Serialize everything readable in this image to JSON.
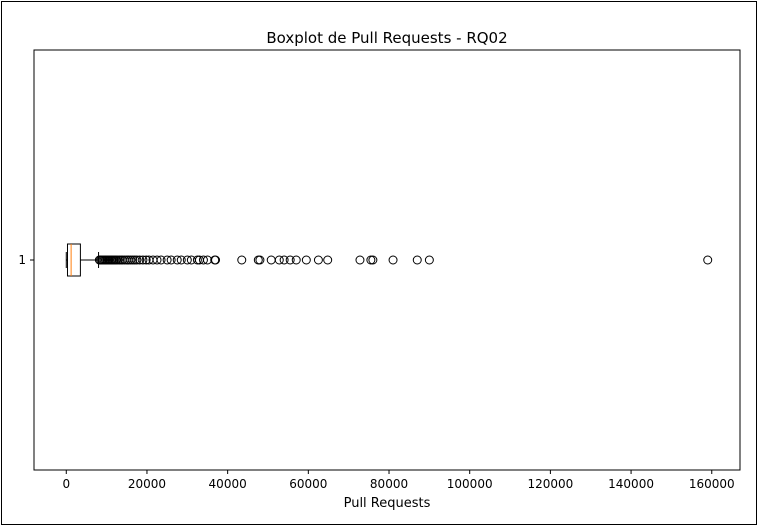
{
  "chart_data": {
    "type": "boxplot",
    "orientation": "horizontal",
    "title": "Boxplot de Pull Requests - RQ02",
    "xlabel": "Pull Requests",
    "ylabel": "",
    "xlim": [
      -8000,
      167000
    ],
    "xticks": [
      0,
      20000,
      40000,
      60000,
      80000,
      100000,
      120000,
      140000,
      160000
    ],
    "xtick_labels": [
      "0",
      "20000",
      "40000",
      "60000",
      "80000",
      "100000",
      "120000",
      "140000",
      "160000"
    ],
    "categories": [
      "1"
    ],
    "box": {
      "whisker_low": 0,
      "q1": 300,
      "median": 1200,
      "q3": 3500,
      "whisker_high": 8000
    },
    "outliers": [
      8200,
      8500,
      8800,
      9100,
      9400,
      9700,
      10000,
      10300,
      10600,
      10900,
      11200,
      11500,
      11800,
      12100,
      12400,
      12800,
      13200,
      13600,
      14000,
      14500,
      15000,
      15500,
      16000,
      16500,
      17000,
      17500,
      18200,
      19000,
      19800,
      20500,
      21500,
      22500,
      23500,
      25000,
      26000,
      27500,
      28500,
      30000,
      31000,
      32500,
      33000,
      34000,
      35000,
      36800,
      37000,
      43500,
      47600,
      48000,
      50800,
      52800,
      54000,
      55500,
      57000,
      59500,
      62500,
      64800,
      72800,
      75500,
      76000,
      81000,
      87000,
      90000,
      159000
    ],
    "colors": {
      "box": "#000000",
      "median": "#ff7f0e",
      "outlier": "#000000"
    },
    "grid": false
  }
}
